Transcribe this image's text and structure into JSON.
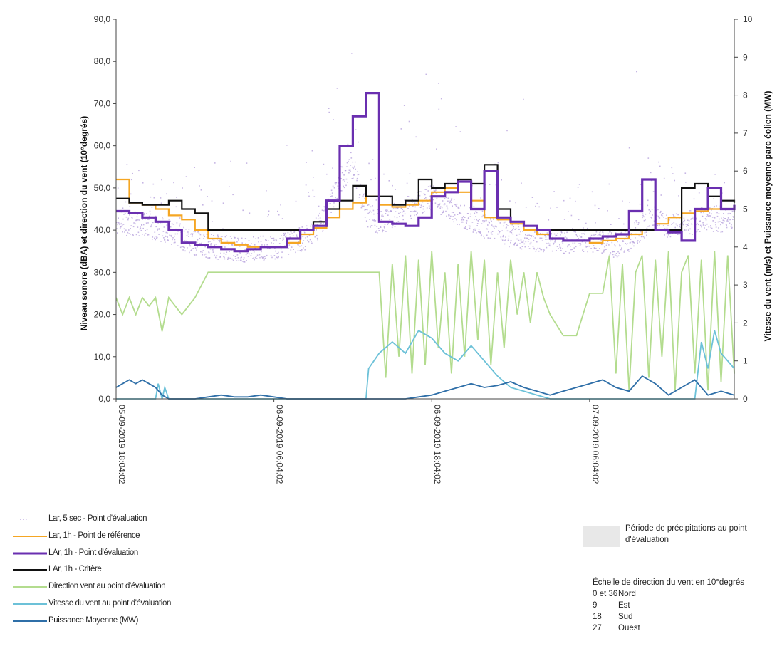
{
  "chart_data": {
    "type": "line",
    "ylabel_left": "Niveau sonore (dBA) et direction du vent (10°degrés)",
    "ylabel_right": "Vitesse du vent (m/s) et Puissance moyenne parc éolien (MW)",
    "y_left_range": [
      0,
      90
    ],
    "y_right_range": [
      0,
      10
    ],
    "y_left_ticks": [
      "0,0",
      "10,0",
      "20,0",
      "30,0",
      "40,0",
      "50,0",
      "60,0",
      "70,0",
      "80,0",
      "90,0"
    ],
    "y_right_ticks": [
      "0",
      "1",
      "2",
      "3",
      "4",
      "5",
      "6",
      "7",
      "8",
      "9",
      "10"
    ],
    "x_ticks": [
      "05-09-2019 18:04:02",
      "06-09-2019 06:04:02",
      "06-09-2019 18:04:02",
      "07-09-2019 06:04:02"
    ],
    "x_range_hours": [
      0,
      47
    ],
    "x_axis_note": "x values are hours elapsed since 05-09-2019 18:04:02",
    "grid": false,
    "series": [
      {
        "name": "Lar, 5 sec - Point d'évaluation",
        "kind": "scatter",
        "axis": "left",
        "color": "#b39ddb",
        "baseline": [
          [
            0,
            42
          ],
          [
            2,
            41.5
          ],
          [
            4,
            40
          ],
          [
            6,
            37
          ],
          [
            8,
            36
          ],
          [
            10,
            35.5
          ],
          [
            12,
            36
          ],
          [
            14,
            38
          ],
          [
            15,
            39
          ],
          [
            16,
            44
          ],
          [
            17,
            52
          ],
          [
            18,
            55
          ],
          [
            19,
            44
          ],
          [
            20,
            42
          ],
          [
            22,
            45
          ],
          [
            24,
            48
          ],
          [
            25,
            46
          ],
          [
            26,
            44
          ],
          [
            28,
            41
          ],
          [
            30,
            39
          ],
          [
            32,
            38
          ],
          [
            34,
            37.5
          ],
          [
            36,
            38
          ],
          [
            37,
            37
          ],
          [
            38,
            36.5
          ],
          [
            39,
            38
          ],
          [
            40,
            41
          ],
          [
            41,
            43
          ],
          [
            42,
            41
          ],
          [
            44,
            42
          ],
          [
            45,
            43
          ],
          [
            47,
            42
          ]
        ]
      },
      {
        "name": "Lar, 1h - Point de référence",
        "kind": "step",
        "axis": "left",
        "color": "#f5a623",
        "x": [
          0,
          1,
          2,
          3,
          4,
          5,
          6,
          7,
          8,
          9,
          10,
          11,
          12,
          13,
          14,
          15,
          16,
          17,
          18,
          19,
          20,
          21,
          22,
          23,
          24,
          25,
          26,
          27,
          28,
          29,
          30,
          31,
          32,
          33,
          34,
          35,
          36,
          37,
          38,
          39,
          40,
          41,
          42,
          43,
          44,
          45,
          46,
          47
        ],
        "y": [
          52,
          46.5,
          46,
          45,
          43.5,
          42.5,
          40,
          38,
          37,
          36.5,
          36,
          36,
          36,
          37,
          39,
          40.5,
          43,
          45,
          46.5,
          48,
          46,
          45.5,
          46,
          47,
          49,
          50,
          49,
          47,
          43,
          42.5,
          41.5,
          40,
          39,
          38,
          37.5,
          37.5,
          37,
          37.5,
          38,
          39,
          40,
          41.5,
          43,
          44,
          44.5,
          45,
          45,
          45
        ]
      },
      {
        "name": "LAr, 1h - Point d'évaluation",
        "kind": "step",
        "axis": "left",
        "color": "#6a2fb0",
        "x": [
          0,
          1,
          2,
          3,
          4,
          5,
          6,
          7,
          8,
          9,
          10,
          11,
          12,
          13,
          14,
          15,
          16,
          17,
          18,
          19,
          20,
          21,
          22,
          23,
          24,
          25,
          26,
          27,
          28,
          29,
          30,
          31,
          32,
          33,
          34,
          35,
          36,
          37,
          38,
          39,
          40,
          41,
          42,
          43,
          44,
          45,
          46,
          47
        ],
        "y": [
          44.5,
          44,
          43,
          42,
          40,
          37,
          36.5,
          36,
          35.5,
          35,
          35.5,
          36,
          36,
          38,
          40,
          41,
          47,
          60,
          67,
          72.5,
          42,
          41.5,
          41,
          43,
          48,
          49,
          51.5,
          45,
          54,
          43,
          42,
          41,
          40,
          38,
          37.5,
          37.5,
          38,
          38.5,
          39,
          44.5,
          52,
          40,
          39.5,
          37.5,
          45,
          50,
          45,
          46
        ]
      },
      {
        "name": "LAr, 1h - Critère",
        "kind": "step",
        "axis": "left",
        "color": "#111111",
        "x": [
          0,
          1,
          2,
          3,
          4,
          5,
          6,
          7,
          8,
          9,
          10,
          11,
          12,
          13,
          14,
          15,
          16,
          17,
          18,
          19,
          20,
          21,
          22,
          23,
          24,
          25,
          26,
          27,
          28,
          29,
          30,
          31,
          32,
          33,
          34,
          35,
          36,
          37,
          38,
          39,
          40,
          41,
          42,
          43,
          44,
          45,
          46,
          47
        ],
        "y": [
          47.5,
          46.5,
          46,
          46,
          47,
          45,
          44,
          40,
          40,
          40,
          40,
          40,
          40,
          40,
          40,
          42,
          45,
          47,
          50.5,
          48,
          48,
          46,
          47,
          52,
          50,
          51,
          52,
          51,
          55.5,
          45,
          42,
          41,
          40,
          40,
          40,
          40,
          40,
          40,
          40,
          40,
          40,
          40,
          40,
          50,
          51,
          48,
          47,
          46.5
        ]
      },
      {
        "name": "Direction vent au point d'évaluation",
        "kind": "line",
        "axis": "left",
        "color": "#b3dc8e",
        "x": [
          0,
          0.5,
          1,
          1.5,
          2,
          2.5,
          3,
          3.5,
          4,
          4.5,
          5,
          6,
          7,
          8,
          9,
          10,
          11,
          12,
          13,
          14,
          15,
          16,
          17,
          18,
          19,
          20,
          20.5,
          21,
          21.5,
          22,
          22.5,
          23,
          23.5,
          24,
          24.5,
          25,
          25.5,
          26,
          26.5,
          27,
          27.5,
          28,
          28.5,
          29,
          29.5,
          30,
          30.5,
          31,
          31.5,
          32,
          32.5,
          33,
          34,
          35,
          35.5,
          36,
          36.5,
          37,
          37.5,
          38,
          38.5,
          39,
          39.5,
          40,
          40.5,
          41,
          41.5,
          42,
          42.5,
          43,
          43.5,
          44,
          44.5,
          45,
          45.5,
          46,
          46.5,
          47
        ],
        "y": [
          24,
          20,
          24,
          20,
          24,
          22,
          24,
          16,
          24,
          22,
          20,
          24,
          30,
          30,
          30,
          30,
          30,
          30,
          30,
          30,
          30,
          30,
          30,
          30,
          30,
          30,
          5,
          32,
          10,
          34,
          6,
          33,
          8,
          35,
          12,
          30,
          6,
          32,
          10,
          35,
          14,
          33,
          8,
          30,
          12,
          33,
          20,
          30,
          18,
          30,
          24,
          20,
          15,
          15,
          20,
          25,
          25,
          25,
          34,
          6,
          32,
          2,
          30,
          34,
          5,
          33,
          10,
          35,
          2,
          30,
          34,
          6,
          33,
          2,
          35,
          4,
          34,
          6
        ]
      },
      {
        "name": "Vitesse du vent au point d'évaluation",
        "kind": "line",
        "axis": "right",
        "color": "#6cc1d8",
        "x": [
          0,
          3,
          3.2,
          3.5,
          3.7,
          4,
          5,
          10,
          15,
          17,
          18.5,
          19,
          19.2,
          20,
          21,
          22,
          23,
          24,
          25,
          26,
          27,
          28,
          29,
          30,
          31,
          32,
          33,
          34,
          35,
          36,
          37,
          38,
          39,
          40,
          41,
          42,
          43,
          44,
          44.5,
          45,
          45.5,
          46,
          47
        ],
        "y": [
          0,
          0,
          0.4,
          0,
          0.3,
          0,
          0,
          0,
          0,
          0,
          0,
          0,
          0.8,
          1.2,
          1.5,
          1.2,
          1.8,
          1.6,
          1.2,
          1.0,
          1.4,
          1.0,
          0.6,
          0.3,
          0.2,
          0.1,
          0,
          0,
          0,
          0,
          0,
          0,
          0,
          0,
          0,
          0,
          0,
          0,
          1.5,
          0.8,
          1.8,
          1.2,
          0.8
        ]
      },
      {
        "name": "Puissance Moyenne (MW)",
        "kind": "line",
        "axis": "right",
        "color": "#2f6fa8",
        "x": [
          0,
          0.5,
          1,
          1.5,
          2,
          2.5,
          3,
          3.5,
          4,
          5,
          6,
          7,
          8,
          9,
          10,
          11,
          12,
          13,
          14,
          15,
          16,
          17,
          18,
          19,
          20,
          21,
          22,
          23,
          24,
          25,
          26,
          27,
          28,
          29,
          30,
          31,
          32,
          33,
          34,
          35,
          36,
          37,
          38,
          39,
          40,
          41,
          42,
          43,
          44,
          45,
          46,
          47
        ],
        "y": [
          0.3,
          0.4,
          0.5,
          0.4,
          0.5,
          0.4,
          0.3,
          0.1,
          0,
          0,
          0,
          0.05,
          0.1,
          0.05,
          0.05,
          0.1,
          0.05,
          0,
          0,
          0,
          0,
          0,
          0,
          0,
          0,
          0,
          0,
          0.05,
          0.1,
          0.2,
          0.3,
          0.4,
          0.3,
          0.35,
          0.45,
          0.3,
          0.2,
          0.1,
          0.2,
          0.3,
          0.4,
          0.5,
          0.3,
          0.2,
          0.6,
          0.4,
          0.1,
          0.3,
          0.5,
          0.1,
          0.2,
          0.1
        ]
      }
    ]
  },
  "legend": {
    "items": [
      {
        "label": "Lar, 5 sec - Point d'évaluation",
        "color": "#b39ddb",
        "style": "dots"
      },
      {
        "label": "Lar, 1h - Point de référence",
        "color": "#f5a623",
        "style": "line"
      },
      {
        "label": "LAr, 1h - Point d'évaluation",
        "color": "#6a2fb0",
        "style": "line"
      },
      {
        "label": "LAr, 1h - Critère",
        "color": "#111111",
        "style": "line"
      },
      {
        "label": "Direction vent au point d'évaluation",
        "color": "#b3dc8e",
        "style": "line"
      },
      {
        "label": "Vitesse du vent au point d'évaluation",
        "color": "#6cc1d8",
        "style": "line"
      },
      {
        "label": "Puissance Moyenne (MW)",
        "color": "#2f6fa8",
        "style": "line"
      }
    ]
  },
  "precipitation": {
    "label": "Période de précipitations au point d'évaluation"
  },
  "direction_scale": {
    "title": "Échelle de direction du vent en 10°degrés",
    "rows": [
      {
        "key": "0 et 36",
        "value": "Nord"
      },
      {
        "key": "9",
        "value": "Est"
      },
      {
        "key": "18",
        "value": "Sud"
      },
      {
        "key": "27",
        "value": "Ouest"
      }
    ]
  }
}
